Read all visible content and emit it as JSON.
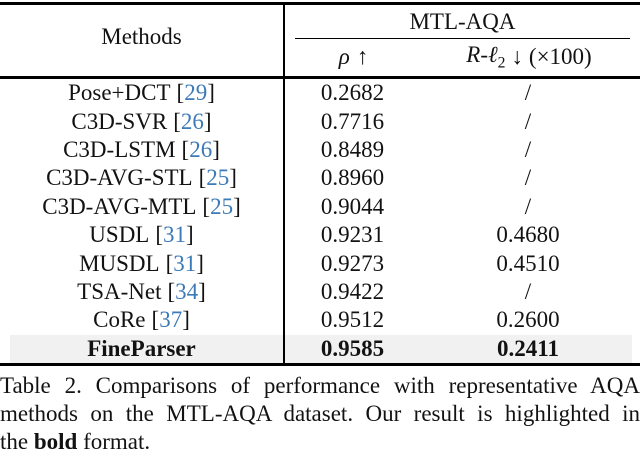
{
  "colors": {
    "cite_blue": "#3d7ab8",
    "highlight_bg": "#f1f1f1",
    "rule_black": "#000000"
  },
  "table": {
    "cite_open": "[",
    "cite_close": "]",
    "header": {
      "methods": "Methods",
      "group": "MTL-AQA",
      "rho_symbol": "ρ",
      "rho_arrow": "↑",
      "rl2_main": "R-ℓ",
      "rl2_sub": "2",
      "rl2_arrow": "↓",
      "rl2_scale": "(×100)"
    },
    "rows": [
      {
        "name": "Pose+DCT",
        "cite": "29",
        "rho": "0.2682",
        "rl2": "/"
      },
      {
        "name": "C3D-SVR",
        "cite": "26",
        "rho": "0.7716",
        "rl2": "/"
      },
      {
        "name": "C3D-LSTM",
        "cite": "26",
        "rho": "0.8489",
        "rl2": "/"
      },
      {
        "name": "C3D-AVG-STL",
        "cite": "25",
        "rho": "0.8960",
        "rl2": "/"
      },
      {
        "name": "C3D-AVG-MTL",
        "cite": "25",
        "rho": "0.9044",
        "rl2": "/"
      },
      {
        "name": "USDL",
        "cite": "31",
        "rho": "0.9231",
        "rl2": "0.4680"
      },
      {
        "name": "MUSDL",
        "cite": "31",
        "rho": "0.9273",
        "rl2": "0.4510"
      },
      {
        "name": "TSA-Net",
        "cite": "34",
        "rho": "0.9422",
        "rl2": "/"
      },
      {
        "name": "CoRe",
        "cite": "37",
        "rho": "0.9512",
        "rl2": "0.2600"
      }
    ],
    "highlight": {
      "name": "FineParser",
      "rho": "0.9585",
      "rl2": "0.2411"
    }
  },
  "caption": {
    "line1": "Table 2.  Comparisons of performance with representative AQA",
    "line2": "methods on the MTL-AQA dataset.  Our result is highlighted in",
    "line3_pre": "the ",
    "line3_bold": "bold",
    "line3_post": " format."
  }
}
